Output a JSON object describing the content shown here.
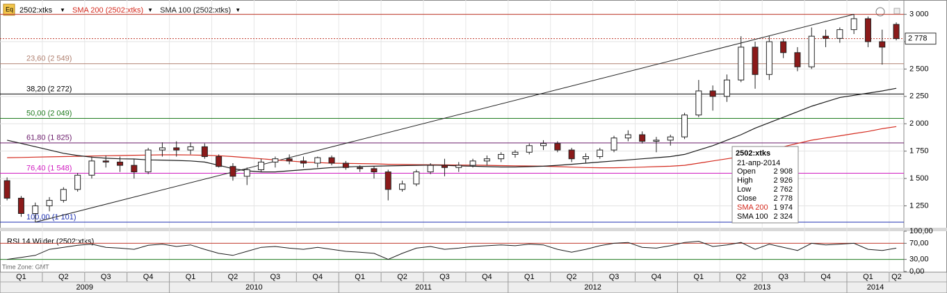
{
  "chart_data": [
    {
      "type": "candlestick",
      "symbol": "2502:xtks",
      "candles": {
        "open": [
          1480,
          1320,
          1180,
          1250,
          1300,
          1400,
          1530,
          1660,
          1650,
          1620,
          1560,
          1760,
          1780,
          1760,
          1790,
          1700,
          1610,
          1520,
          1580,
          1650,
          1680,
          1660,
          1640,
          1690,
          1640,
          1600,
          1590,
          1560,
          1400,
          1450,
          1560,
          1620,
          1600,
          1620,
          1660,
          1680,
          1720,
          1740,
          1800,
          1820,
          1760,
          1680,
          1700,
          1760,
          1870,
          1900,
          1840,
          1850,
          1880,
          2080,
          2300,
          2250,
          2400,
          2700,
          2450,
          2750,
          2650,
          2520,
          2800,
          2780,
          2860,
          2960,
          2750,
          2908
        ],
        "high": [
          1510,
          1340,
          1280,
          1330,
          1420,
          1550,
          1700,
          1710,
          1700,
          1680,
          1780,
          1830,
          1840,
          1830,
          1820,
          1720,
          1640,
          1600,
          1680,
          1700,
          1720,
          1700,
          1700,
          1710,
          1660,
          1620,
          1610,
          1580,
          1480,
          1580,
          1640,
          1680,
          1650,
          1680,
          1710,
          1740,
          1760,
          1820,
          1850,
          1840,
          1780,
          1730,
          1780,
          1890,
          1940,
          1930,
          1880,
          1900,
          2100,
          2400,
          2350,
          2450,
          2800,
          2750,
          2800,
          2780,
          2700,
          2880,
          2860,
          2880,
          3000,
          2980,
          2860,
          2926
        ],
        "low": [
          1300,
          1150,
          1101,
          1200,
          1280,
          1380,
          1500,
          1600,
          1560,
          1500,
          1540,
          1700,
          1700,
          1720,
          1680,
          1600,
          1480,
          1440,
          1560,
          1600,
          1630,
          1600,
          1600,
          1620,
          1580,
          1560,
          1500,
          1300,
          1380,
          1430,
          1540,
          1520,
          1560,
          1600,
          1620,
          1650,
          1690,
          1720,
          1760,
          1740,
          1650,
          1640,
          1680,
          1740,
          1840,
          1820,
          1740,
          1800,
          1860,
          2060,
          2120,
          2200,
          2380,
          2320,
          2400,
          2600,
          2480,
          2500,
          2700,
          2740,
          2820,
          2700,
          2540,
          2762
        ],
        "close": [
          1320,
          1180,
          1250,
          1300,
          1400,
          1530,
          1660,
          1650,
          1620,
          1560,
          1760,
          1780,
          1760,
          1790,
          1700,
          1610,
          1520,
          1580,
          1650,
          1680,
          1660,
          1640,
          1690,
          1640,
          1600,
          1590,
          1560,
          1400,
          1450,
          1560,
          1620,
          1600,
          1620,
          1660,
          1680,
          1720,
          1740,
          1800,
          1820,
          1760,
          1680,
          1700,
          1760,
          1870,
          1900,
          1840,
          1850,
          1880,
          2080,
          2300,
          2250,
          2400,
          2700,
          2450,
          2750,
          2650,
          2520,
          2800,
          2780,
          2860,
          2960,
          2750,
          2700,
          2778
        ]
      },
      "series": [
        {
          "name": "SMA 200 (2502:xtks)",
          "color": "#d42a1e",
          "values": [
            1690,
            1692,
            1695,
            1698,
            1700,
            1702,
            1705,
            1708,
            1710,
            1712,
            1714,
            1716,
            1716,
            1715,
            1712,
            1708,
            1700,
            1690,
            1680,
            1670,
            1660,
            1650,
            1645,
            1640,
            1638,
            1636,
            1634,
            1630,
            1628,
            1626,
            1625,
            1624,
            1623,
            1622,
            1620,
            1618,
            1616,
            1614,
            1612,
            1608,
            1604,
            1600,
            1598,
            1598,
            1600,
            1604,
            1608,
            1612,
            1620,
            1640,
            1660,
            1680,
            1700,
            1730,
            1760,
            1790,
            1820,
            1850,
            1870,
            1890,
            1910,
            1930,
            1955,
            1974
          ]
        },
        {
          "name": "SMA 100 (2502:xtks)",
          "color": "#1a1a1a",
          "values": [
            1850,
            1820,
            1790,
            1760,
            1730,
            1710,
            1695,
            1685,
            1680,
            1678,
            1670,
            1668,
            1665,
            1660,
            1650,
            1620,
            1590,
            1570,
            1560,
            1560,
            1570,
            1580,
            1590,
            1600,
            1605,
            1610,
            1612,
            1615,
            1618,
            1620,
            1622,
            1620,
            1615,
            1612,
            1608,
            1605,
            1605,
            1608,
            1612,
            1620,
            1630,
            1640,
            1650,
            1660,
            1670,
            1680,
            1690,
            1700,
            1720,
            1760,
            1800,
            1850,
            1900,
            1960,
            2010,
            2060,
            2110,
            2160,
            2200,
            2240,
            2260,
            2280,
            2300,
            2324
          ]
        }
      ],
      "levels": [
        {
          "value": 3000,
          "color": "#c0392b"
        },
        {
          "label": "23,60 (2 549)",
          "value": 2549,
          "color": "#b08070"
        },
        {
          "label": "38,20 (2 272)",
          "value": 2272,
          "color": "#000000"
        },
        {
          "label": "50,00 (2 049)",
          "value": 2049,
          "color": "#1e7a1e"
        },
        {
          "label": "61,80 (1 825)",
          "value": 1825,
          "color": "#6a1b6a"
        },
        {
          "label": "76,40 (1 548)",
          "value": 1548,
          "color": "#d01cc0"
        },
        {
          "label": "100,00 (1 101)",
          "value": 1101,
          "color": "#1c2fb0"
        }
      ],
      "last_price": {
        "value": 2778,
        "label": "2 778"
      },
      "ylim": [
        1050,
        3080
      ],
      "yticks": [
        {
          "value": 1250,
          "label": "1 250"
        },
        {
          "value": 1500,
          "label": "1 500"
        },
        {
          "value": 1750,
          "label": "1 750"
        },
        {
          "value": 2000,
          "label": "2 000"
        },
        {
          "value": 2250,
          "label": "2 250"
        },
        {
          "value": 2500,
          "label": "2 500"
        },
        {
          "value": 2750,
          "label": "2 750"
        },
        {
          "value": 3000,
          "label": "3 000"
        }
      ],
      "grid": true,
      "tooltip": {
        "title": "2502:xtks",
        "date": "21-апр-2014",
        "rows": [
          {
            "name": "Open",
            "value": 2908,
            "value_label": "2 908"
          },
          {
            "name": "High",
            "value": 2926,
            "value_label": "2 926"
          },
          {
            "name": "Low",
            "value": 2762,
            "value_label": "2 762"
          },
          {
            "name": "Close",
            "value": 2778,
            "value_label": "2 778"
          },
          {
            "name": "SMA 200",
            "value": 1974,
            "value_label": "1 974",
            "color": "#d42a1e"
          },
          {
            "name": "SMA 100",
            "value": 2324,
            "value_label": "2 324"
          }
        ]
      }
    },
    {
      "type": "line",
      "title": "RSI 14 Wilder (2502:xtks)",
      "color": "#1a1a1a",
      "values": [
        30,
        35,
        40,
        55,
        60,
        65,
        68,
        60,
        58,
        55,
        65,
        68,
        62,
        66,
        55,
        45,
        40,
        50,
        60,
        62,
        58,
        55,
        60,
        55,
        50,
        48,
        45,
        30,
        45,
        58,
        62,
        55,
        58,
        62,
        64,
        66,
        64,
        68,
        66,
        55,
        48,
        55,
        64,
        70,
        72,
        60,
        58,
        64,
        72,
        75,
        62,
        66,
        72,
        55,
        68,
        60,
        52,
        70,
        66,
        68,
        70,
        55,
        52,
        58
      ],
      "ylim": [
        0,
        100
      ],
      "yticks": [
        {
          "value": 0,
          "label": "0,00"
        },
        {
          "value": 30,
          "label": "30,00"
        },
        {
          "value": 70,
          "label": "70,00"
        },
        {
          "value": 100,
          "label": "100,00"
        }
      ],
      "levels": [
        {
          "value": 70,
          "color": "#c0392b"
        },
        {
          "value": 30,
          "color": "#1e7a1e"
        }
      ]
    }
  ],
  "time_axis": {
    "time_zone": "Time Zone: GMT",
    "quarters": [
      "Q1",
      "Q2",
      "Q3",
      "Q4",
      "Q1",
      "Q2",
      "Q3",
      "Q4",
      "Q1",
      "Q2",
      "Q3",
      "Q4",
      "Q1",
      "Q2",
      "Q3",
      "Q4",
      "Q1",
      "Q2",
      "Q3",
      "Q4",
      "Q1",
      "Q2"
    ],
    "years": [
      "2009",
      "2010",
      "2011",
      "2012",
      "2013",
      "2014"
    ]
  }
}
